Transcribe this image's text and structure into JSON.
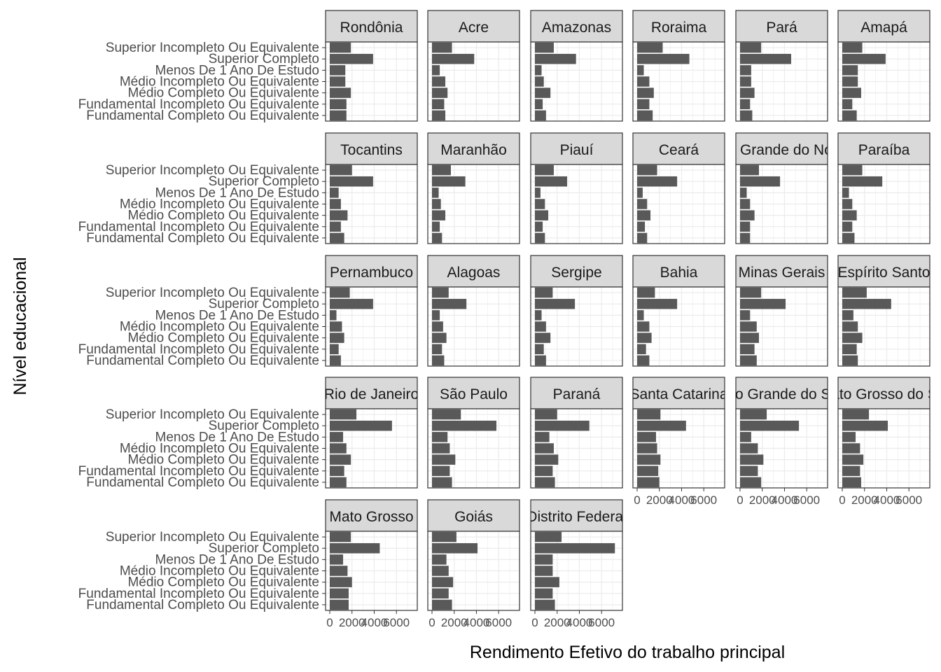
{
  "chart_data": {
    "type": "bar",
    "orientation": "horizontal",
    "layout": "facet_wrap",
    "facet_columns": 6,
    "xlabel": "Rendimento Efetivo do trabalho principal",
    "ylabel": "Nível educacional",
    "xlim": [
      0,
      7500
    ],
    "x_ticks": [
      0,
      2000,
      4000,
      6000
    ],
    "x_tick_labels": [
      "0",
      "2000",
      "4000",
      "6000"
    ],
    "grid": true,
    "categories": [
      "Superior Incompleto Ou Equivalente",
      "Superior Completo",
      "Menos De 1 Ano De Estudo",
      "Médio Incompleto Ou Equivalente",
      "Médio Completo Ou Equivalente",
      "Fundamental Incompleto Ou Equivalente",
      "Fundamental Completo Ou Equivalente"
    ],
    "series": [
      {
        "name": "Rondônia",
        "values": [
          1900,
          3900,
          1400,
          1400,
          1900,
          1500,
          1500
        ]
      },
      {
        "name": "Acre",
        "values": [
          1800,
          3800,
          700,
          1200,
          1400,
          1100,
          1200
        ]
      },
      {
        "name": "Amazonas",
        "values": [
          1700,
          3700,
          600,
          800,
          1400,
          700,
          1000
        ]
      },
      {
        "name": "Roraima",
        "values": [
          2300,
          4700,
          600,
          1100,
          1500,
          1100,
          1400
        ]
      },
      {
        "name": "Pará",
        "values": [
          1900,
          4600,
          1000,
          1000,
          1300,
          900,
          1100
        ]
      },
      {
        "name": "Amapá",
        "values": [
          1800,
          3900,
          1400,
          1400,
          1700,
          900,
          1300
        ]
      },
      {
        "name": "Tocantins",
        "values": [
          2000,
          3900,
          800,
          1000,
          1600,
          1000,
          1300
        ]
      },
      {
        "name": "Maranhão",
        "values": [
          1700,
          3000,
          600,
          800,
          1200,
          700,
          900
        ]
      },
      {
        "name": "Piauí",
        "values": [
          1700,
          2900,
          500,
          900,
          1200,
          700,
          900
        ]
      },
      {
        "name": "Ceará",
        "values": [
          1800,
          3600,
          500,
          900,
          1200,
          700,
          900
        ]
      },
      {
        "name": "Rio Grande do Norte",
        "values": [
          1700,
          3600,
          600,
          900,
          1300,
          900,
          900
        ]
      },
      {
        "name": "Paraíba",
        "values": [
          1800,
          3600,
          600,
          900,
          1300,
          900,
          1100
        ]
      },
      {
        "name": "Pernambuco",
        "values": [
          1800,
          3900,
          600,
          1100,
          1300,
          800,
          1000
        ]
      },
      {
        "name": "Alagoas",
        "values": [
          1500,
          3100,
          700,
          1000,
          1300,
          900,
          1100
        ]
      },
      {
        "name": "Sergipe",
        "values": [
          1600,
          3600,
          600,
          1000,
          1400,
          800,
          1000
        ]
      },
      {
        "name": "Bahia",
        "values": [
          1600,
          3600,
          600,
          1100,
          1300,
          800,
          1100
        ]
      },
      {
        "name": "Minas Gerais",
        "values": [
          1900,
          4100,
          900,
          1500,
          1700,
          1300,
          1500
        ]
      },
      {
        "name": "Espírito Santo",
        "values": [
          2200,
          4400,
          1000,
          1400,
          1800,
          1300,
          1400
        ]
      },
      {
        "name": "Rio de Janeiro",
        "values": [
          2400,
          5600,
          1200,
          1500,
          1900,
          1300,
          1500
        ]
      },
      {
        "name": "São Paulo",
        "values": [
          2600,
          5800,
          1400,
          1600,
          2100,
          1600,
          1800
        ]
      },
      {
        "name": "Paraná",
        "values": [
          2000,
          4900,
          1300,
          1700,
          2100,
          1600,
          1800
        ]
      },
      {
        "name": "Santa Catarina",
        "values": [
          2100,
          4400,
          1700,
          1800,
          2100,
          1900,
          2000
        ]
      },
      {
        "name": "Rio Grande do Sul",
        "values": [
          2400,
          5300,
          1000,
          1600,
          2100,
          1600,
          1900
        ]
      },
      {
        "name": "Mato Grosso do Sul",
        "values": [
          2400,
          4100,
          1200,
          1600,
          1900,
          1600,
          1700
        ]
      },
      {
        "name": "Mato Grosso",
        "values": [
          1900,
          4500,
          1200,
          1600,
          2000,
          1700,
          1700
        ]
      },
      {
        "name": "Goiás",
        "values": [
          2200,
          4100,
          1300,
          1500,
          1900,
          1500,
          1800
        ]
      },
      {
        "name": "Distrito Federal",
        "values": [
          2400,
          7200,
          1600,
          1600,
          2200,
          1600,
          1800
        ]
      }
    ],
    "colors": {
      "bar": "#595959",
      "strip_fill": "#d9d9d9",
      "grid": "#ebebeb",
      "border": "#333333"
    }
  }
}
